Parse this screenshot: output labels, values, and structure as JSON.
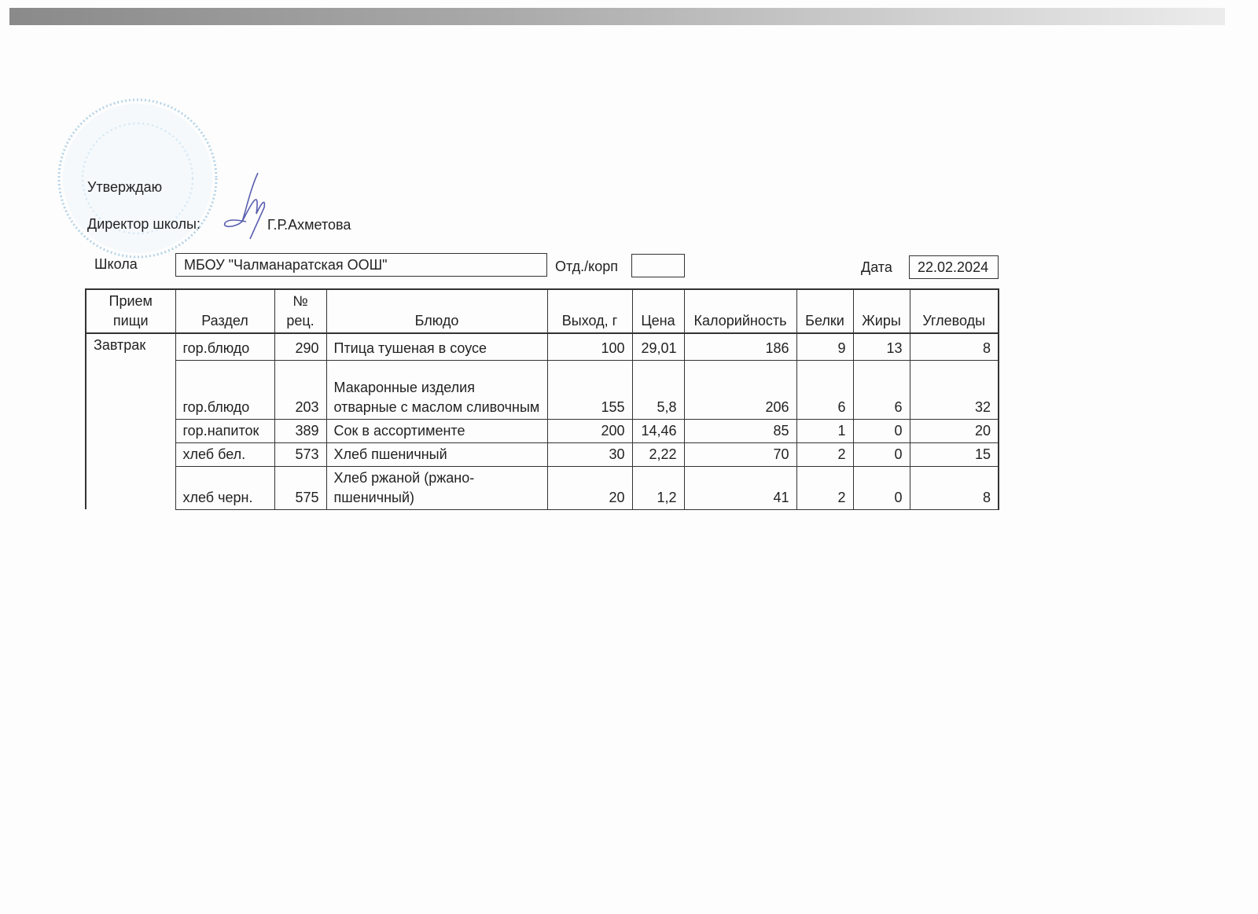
{
  "approval": {
    "approve_label": "Утверждаю",
    "director_label": "Директор школы:",
    "director_name": "Г.Р.Ахметова",
    "stamp_color": "#9fc6e0",
    "signature_color": "#5a5fb0"
  },
  "form": {
    "school_label": "Школа",
    "school_value": "МБОУ \"Чалманаратская ООШ\"",
    "dept_label": "Отд./корп",
    "dept_value": "",
    "date_label": "Дата",
    "date_value": "22.02.2024"
  },
  "table": {
    "headers": [
      "Прием пищи",
      "Раздел",
      "№ рец.",
      "Блюдо",
      "Выход, г",
      "Цена",
      "Калорийность",
      "Белки",
      "Жиры",
      "Углеводы"
    ],
    "meal": "Завтрак",
    "rows": [
      {
        "section": "гор.блюдо",
        "recipe": "290",
        "dish": "Птица тушеная в соусе",
        "yield": "100",
        "price": "29,01",
        "calories": "186",
        "protein": "9",
        "fat": "13",
        "carbs": "8"
      },
      {
        "section": "гор.блюдо",
        "recipe": "203",
        "dish": "Макаронные изделия отварные с маслом сливочным",
        "yield": "155",
        "price": "5,8",
        "calories": "206",
        "protein": "6",
        "fat": "6",
        "carbs": "32"
      },
      {
        "section": "гор.напиток",
        "recipe": "389",
        "dish": "Сок в ассортименте",
        "yield": "200",
        "price": "14,46",
        "calories": "85",
        "protein": "1",
        "fat": "0",
        "carbs": "20"
      },
      {
        "section": "хлеб бел.",
        "recipe": "573",
        "dish": "Хлеб пшеничный",
        "yield": "30",
        "price": "2,22",
        "calories": "70",
        "protein": "2",
        "fat": "0",
        "carbs": "15"
      },
      {
        "section": "хлеб черн.",
        "recipe": "575",
        "dish": "Хлеб ржаной (ржано-пшеничный)",
        "yield": "20",
        "price": "1,2",
        "calories": "41",
        "protein": "2",
        "fat": "0",
        "carbs": "8"
      }
    ]
  }
}
